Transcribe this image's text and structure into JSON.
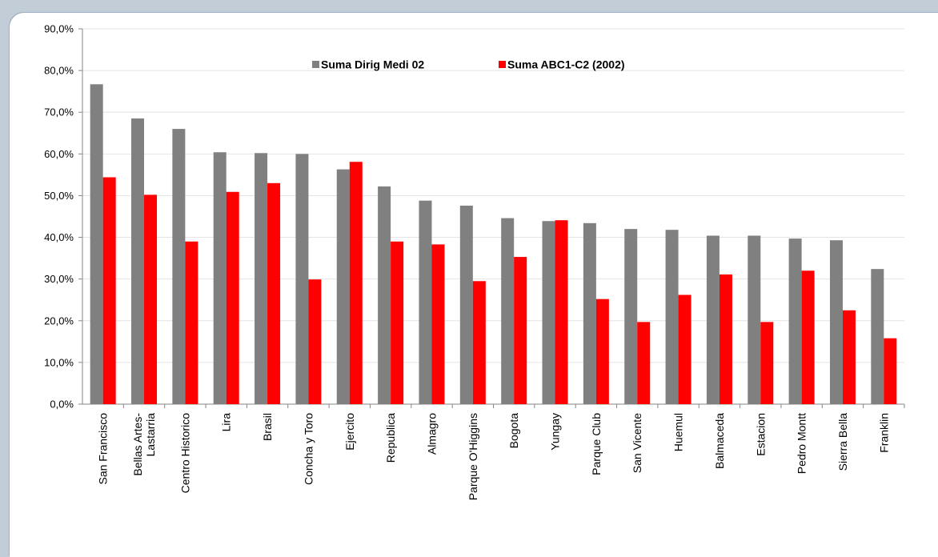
{
  "chart_data": {
    "type": "bar",
    "title": "",
    "xlabel": "",
    "ylabel": "",
    "ylim": [
      0,
      90
    ],
    "y_ticks": [
      "0,0%",
      "10,0%",
      "20,0%",
      "30,0%",
      "40,0%",
      "50,0%",
      "60,0%",
      "70,0%",
      "80,0%",
      "90,0%"
    ],
    "y_tick_values": [
      0,
      10,
      20,
      30,
      40,
      50,
      60,
      70,
      80,
      90
    ],
    "grid": true,
    "legend_position": "top-center",
    "categories": [
      "San Francisco",
      [
        "Bellas Artes-",
        "Lastarria"
      ],
      "Centro Historico",
      "Lira",
      "Brasil",
      "Concha y Toro",
      "Ejercito",
      "Republica",
      "Almagro",
      "Parque O'Higgins",
      "Bogota",
      "Yungay",
      "Parque Club",
      "San Vicente",
      "Huemul",
      "Balmaceda",
      "Estacion",
      "Pedro Montt",
      "Sierra Bella",
      "Franklin"
    ],
    "series": [
      {
        "name": "Suma Dirig Medi 02",
        "color": "#808080",
        "values": [
          76.7,
          68.5,
          66.0,
          60.4,
          60.2,
          60.0,
          56.3,
          52.2,
          48.8,
          47.6,
          44.6,
          43.9,
          43.4,
          42.0,
          41.8,
          40.4,
          40.4,
          39.7,
          39.3,
          32.4
        ]
      },
      {
        "name": "Suma ABC1-C2 (2002)",
        "color": "#ff0000",
        "values": [
          54.4,
          50.2,
          39.0,
          50.9,
          53.0,
          29.9,
          58.1,
          39.0,
          38.3,
          29.5,
          35.3,
          44.1,
          25.2,
          19.7,
          26.2,
          31.1,
          19.7,
          32.0,
          22.5,
          15.8
        ]
      }
    ]
  }
}
